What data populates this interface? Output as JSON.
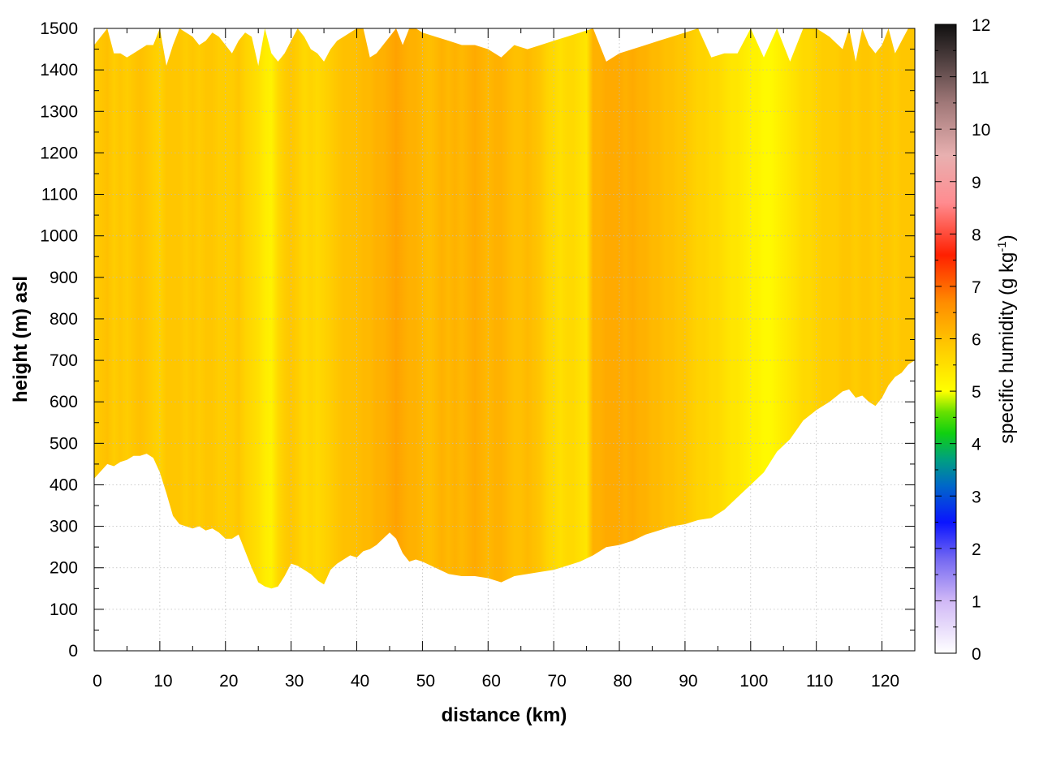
{
  "chart_data": {
    "type": "heatmap",
    "title": "",
    "xlabel": "distance (km)",
    "ylabel": "height (m) asl",
    "xlim": [
      0,
      125
    ],
    "ylim": [
      0,
      1500
    ],
    "x_ticks": [
      0,
      10,
      20,
      30,
      40,
      50,
      60,
      70,
      80,
      90,
      100,
      110,
      120
    ],
    "y_ticks": [
      0,
      100,
      200,
      300,
      400,
      500,
      600,
      700,
      800,
      900,
      1000,
      1100,
      1200,
      1300,
      1400,
      1500
    ],
    "grid": true,
    "colorbar": {
      "label": "specific humidity (g kg",
      "label_sup": "-1",
      "label_end": ")",
      "range": [
        0,
        12
      ],
      "ticks": [
        0,
        1,
        2,
        3,
        4,
        5,
        6,
        7,
        8,
        9,
        10,
        11,
        12
      ],
      "stops": [
        {
          "v": 0,
          "color": "#ffffff"
        },
        {
          "v": 1,
          "color": "#d0b8f6"
        },
        {
          "v": 1.8,
          "color": "#7468f2"
        },
        {
          "v": 2.5,
          "color": "#0a14ff"
        },
        {
          "v": 3.2,
          "color": "#0068c8"
        },
        {
          "v": 3.7,
          "color": "#00a080"
        },
        {
          "v": 4.2,
          "color": "#10d010"
        },
        {
          "v": 4.6,
          "color": "#66e000"
        },
        {
          "v": 5.0,
          "color": "#ffff00"
        },
        {
          "v": 6.0,
          "color": "#ffc000"
        },
        {
          "v": 6.7,
          "color": "#ff8c00"
        },
        {
          "v": 7.6,
          "color": "#ff2000"
        },
        {
          "v": 8.6,
          "color": "#ff8c90"
        },
        {
          "v": 9.5,
          "color": "#e8b0b0"
        },
        {
          "v": 10.5,
          "color": "#a07878"
        },
        {
          "v": 11.3,
          "color": "#504040"
        },
        {
          "v": 12,
          "color": "#101010"
        }
      ]
    },
    "profile": {
      "distance_km": [
        0,
        2,
        3,
        4,
        5,
        6,
        7,
        8,
        9,
        10,
        11,
        12,
        13,
        14,
        15,
        16,
        17,
        18,
        19,
        20,
        21,
        22,
        23,
        24,
        25,
        26,
        27,
        28,
        29,
        30,
        31,
        32,
        33,
        34,
        35,
        36,
        37,
        38,
        39,
        40,
        41,
        42,
        43,
        44,
        45,
        46,
        47,
        48,
        49,
        50,
        52,
        54,
        56,
        58,
        60,
        62,
        64,
        66,
        68,
        70,
        72,
        74,
        76,
        78,
        80,
        82,
        84,
        86,
        88,
        90,
        92,
        94,
        96,
        98,
        100,
        102,
        104,
        106,
        108,
        110,
        112,
        114,
        115,
        116,
        117,
        118,
        119,
        120,
        121,
        122,
        123,
        124,
        125
      ],
      "bottom_m": [
        415,
        450,
        445,
        455,
        460,
        470,
        470,
        475,
        465,
        430,
        380,
        325,
        305,
        300,
        295,
        300,
        290,
        295,
        285,
        270,
        270,
        280,
        240,
        200,
        165,
        155,
        150,
        155,
        180,
        210,
        205,
        195,
        185,
        170,
        160,
        195,
        210,
        220,
        230,
        225,
        240,
        245,
        255,
        270,
        285,
        270,
        235,
        215,
        220,
        215,
        200,
        185,
        180,
        180,
        175,
        165,
        180,
        185,
        190,
        195,
        205,
        215,
        230,
        250,
        255,
        265,
        280,
        290,
        300,
        305,
        315,
        320,
        340,
        370,
        400,
        430,
        480,
        510,
        555,
        580,
        600,
        625,
        630,
        610,
        615,
        600,
        590,
        610,
        640,
        660,
        670,
        690,
        700
      ],
      "top_m": [
        1460,
        1500,
        1440,
        1440,
        1430,
        1440,
        1450,
        1460,
        1460,
        1500,
        1410,
        1460,
        1500,
        1490,
        1480,
        1460,
        1470,
        1490,
        1480,
        1460,
        1440,
        1470,
        1490,
        1480,
        1410,
        1500,
        1440,
        1420,
        1440,
        1470,
        1500,
        1480,
        1450,
        1440,
        1420,
        1450,
        1470,
        1480,
        1490,
        1500,
        1500,
        1430,
        1440,
        1460,
        1480,
        1500,
        1460,
        1500,
        1500,
        1490,
        1480,
        1470,
        1460,
        1460,
        1450,
        1430,
        1460,
        1450,
        1460,
        1470,
        1480,
        1490,
        1500,
        1420,
        1440,
        1450,
        1460,
        1470,
        1480,
        1490,
        1500,
        1430,
        1440,
        1440,
        1500,
        1430,
        1500,
        1420,
        1500,
        1500,
        1480,
        1450,
        1500,
        1420,
        1500,
        1460,
        1440,
        1460,
        1500,
        1440,
        1470,
        1500,
        1500
      ]
    },
    "humidity_by_distance": {
      "distance_km": [
        0,
        1,
        2,
        3,
        4,
        5,
        6,
        7,
        8,
        9,
        10,
        11,
        12,
        13,
        14,
        15,
        16,
        17,
        18,
        19,
        20,
        21,
        22,
        23,
        24,
        25,
        26,
        27,
        28,
        29,
        30,
        31,
        32,
        33,
        34,
        35,
        36,
        37,
        38,
        39,
        40,
        41,
        42,
        43,
        44,
        45,
        46,
        47,
        48,
        49,
        50,
        51,
        52,
        53,
        54,
        55,
        56,
        57,
        58,
        59,
        60,
        61,
        62,
        63,
        64,
        65,
        66,
        67,
        68,
        69,
        70,
        71,
        72,
        73,
        74,
        75,
        76,
        77,
        78,
        79,
        80,
        81,
        82,
        83,
        84,
        85,
        86,
        87,
        88,
        89,
        90,
        91,
        92,
        93,
        94,
        95,
        96,
        97,
        98,
        99,
        100,
        101,
        102,
        103,
        104,
        105,
        106,
        107,
        108,
        109,
        110,
        111,
        112,
        113,
        114,
        115,
        116,
        117,
        118,
        119,
        120,
        121,
        122,
        123,
        124,
        125
      ],
      "q_gkg": [
        5.8,
        5.9,
        6.0,
        5.8,
        5.9,
        5.8,
        5.9,
        6.0,
        5.9,
        5.8,
        5.7,
        5.9,
        5.9,
        5.9,
        5.8,
        5.9,
        5.8,
        5.9,
        5.9,
        5.8,
        5.8,
        5.8,
        5.9,
        5.7,
        5.6,
        5.5,
        5.3,
        5.2,
        5.6,
        5.8,
        5.9,
        5.8,
        5.6,
        5.7,
        5.6,
        5.7,
        5.8,
        5.9,
        6.0,
        6.0,
        6.0,
        6.1,
        6.1,
        6.2,
        6.2,
        6.3,
        6.4,
        6.3,
        6.2,
        6.2,
        6.1,
        6.0,
        6.1,
        6.2,
        6.1,
        6.2,
        6.1,
        6.2,
        6.3,
        6.2,
        6.1,
        6.2,
        6.2,
        6.1,
        6.0,
        6.0,
        6.1,
        6.0,
        5.9,
        5.7,
        5.6,
        5.5,
        5.6,
        5.6,
        5.5,
        5.4,
        6.2,
        6.2,
        6.3,
        6.3,
        6.3,
        6.2,
        6.3,
        6.2,
        6.2,
        6.1,
        6.1,
        6.0,
        6.0,
        5.9,
        5.9,
        5.8,
        5.7,
        5.7,
        5.6,
        5.6,
        5.5,
        5.4,
        5.4,
        5.3,
        5.2,
        5.2,
        5.1,
        5.1,
        5.2,
        5.3,
        5.4,
        5.5,
        5.6,
        5.6,
        5.7,
        5.8,
        5.8,
        5.8,
        5.9,
        5.9,
        5.8,
        5.9,
        5.9,
        5.8,
        5.9,
        5.9,
        5.8,
        5.9,
        5.9,
        5.9
      ]
    }
  }
}
